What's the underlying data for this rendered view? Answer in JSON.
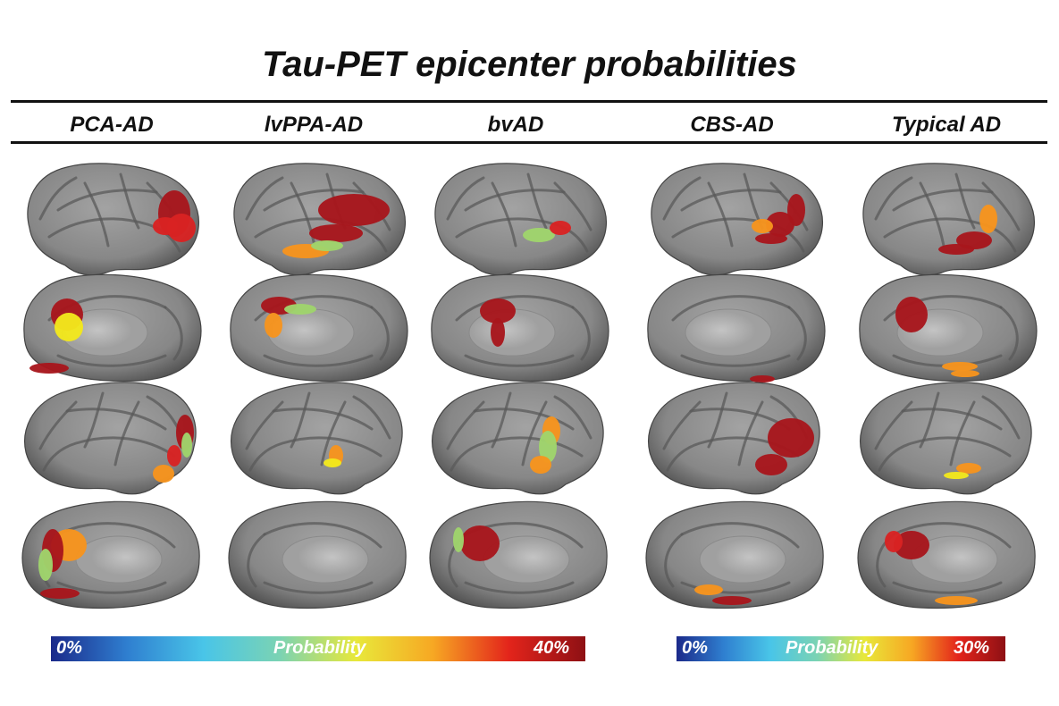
{
  "title": "Tau-PET epicenter probabilities",
  "columns": [
    "PCA-AD",
    "lvPPA-AD",
    "bvAD",
    "CBS-AD",
    "Typical AD"
  ],
  "views": [
    "left-lateral",
    "left-medial",
    "right-lateral",
    "right-medial"
  ],
  "colorbars": [
    {
      "min_label": "0%",
      "center_label": "Probability",
      "max_label": "40%",
      "max_value": 40
    },
    {
      "min_label": "0%",
      "center_label": "Probability",
      "max_label": "30%",
      "max_value": 30
    }
  ],
  "colors": {
    "cortex": "#8c8c8c",
    "sulcus": "#5a5a5a",
    "dark_red": "#a8161c",
    "red": "#d92222",
    "orange": "#f7941d",
    "yellow": "#f2e81c",
    "light_green": "#9fd46c",
    "colormap": [
      "#1b2a8a",
      "#2f7fd0",
      "#49c5e8",
      "#7bd3b3",
      "#e8e83a",
      "#f7a823",
      "#e3241b",
      "#8e1014"
    ]
  }
}
